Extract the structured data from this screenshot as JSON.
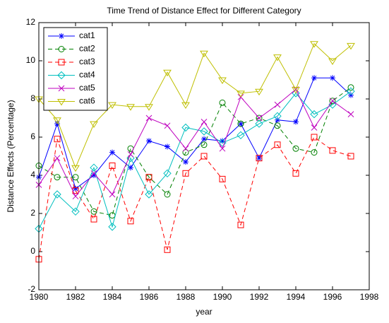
{
  "chart_data": {
    "type": "line",
    "title": "Time Trend of Distance Effect for Different Category",
    "xlabel": "year",
    "ylabel": "Distance Effects (Percentage)",
    "x": [
      1980,
      1981,
      1982,
      1983,
      1984,
      1985,
      1986,
      1987,
      1988,
      1989,
      1990,
      1991,
      1992,
      1993,
      1994,
      1995,
      1996,
      1997
    ],
    "series": [
      {
        "name": "cat1",
        "color": "#0000ff",
        "linestyle": "solid",
        "marker": "star",
        "values": [
          3.9,
          6.7,
          3.3,
          4.0,
          5.2,
          4.4,
          5.8,
          5.5,
          4.7,
          5.9,
          5.8,
          6.7,
          4.9,
          6.9,
          6.8,
          9.1,
          9.1,
          8.2
        ]
      },
      {
        "name": "cat2",
        "color": "#008000",
        "linestyle": "dashed",
        "marker": "circle",
        "values": [
          4.5,
          3.9,
          3.9,
          2.1,
          1.9,
          5.4,
          3.9,
          3.0,
          5.2,
          5.6,
          7.8,
          6.7,
          7.0,
          6.6,
          5.4,
          5.2,
          7.9,
          8.6
        ]
      },
      {
        "name": "cat3",
        "color": "#ff0000",
        "linestyle": "dashed",
        "marker": "square",
        "values": [
          -0.4,
          5.9,
          3.2,
          1.7,
          4.5,
          1.6,
          3.9,
          0.1,
          4.1,
          5.0,
          3.8,
          1.4,
          4.9,
          5.6,
          4.1,
          6.0,
          5.3,
          5.0
        ]
      },
      {
        "name": "cat4",
        "color": "#00bfbf",
        "linestyle": "solid",
        "marker": "diamond",
        "values": [
          1.2,
          3.0,
          2.1,
          4.4,
          1.3,
          4.9,
          3.0,
          4.1,
          6.5,
          6.3,
          5.7,
          6.1,
          6.7,
          7.1,
          8.3,
          7.2,
          7.7,
          8.4
        ]
      },
      {
        "name": "cat5",
        "color": "#bf00bf",
        "linestyle": "solid",
        "marker": "x",
        "values": [
          3.5,
          4.9,
          2.9,
          4.1,
          3.0,
          5.1,
          7.0,
          6.6,
          5.4,
          6.8,
          5.4,
          8.1,
          7.0,
          7.7,
          8.5,
          6.5,
          7.9,
          7.2
        ]
      },
      {
        "name": "cat6",
        "color": "#bfbf00",
        "linestyle": "solid",
        "marker": "triangle-down",
        "values": [
          8.0,
          6.9,
          4.4,
          6.7,
          7.7,
          7.6,
          7.6,
          9.4,
          7.7,
          10.4,
          9.0,
          8.3,
          8.4,
          10.2,
          8.5,
          10.9,
          10.0,
          10.8
        ]
      }
    ],
    "xlim": [
      1980,
      1998
    ],
    "xticks": [
      1980,
      1982,
      1984,
      1986,
      1988,
      1990,
      1992,
      1994,
      1996,
      1998
    ],
    "ylim": [
      -2,
      12
    ],
    "yticks": [
      -2,
      0,
      2,
      4,
      6,
      8,
      10,
      12
    ],
    "legend": "upper-left"
  }
}
